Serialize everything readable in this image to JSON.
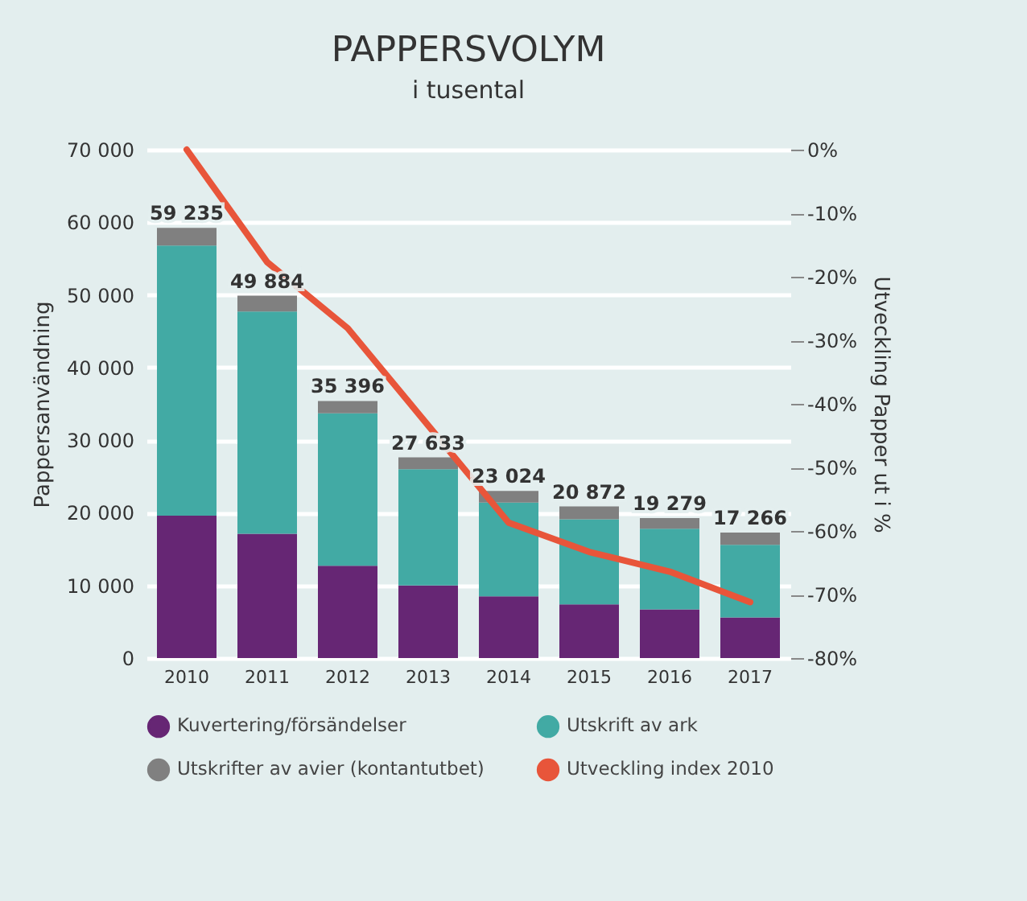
{
  "chart_data": {
    "type": "bar",
    "title": "PAPPERSVOLYM",
    "subtitle": "i tusental",
    "ylabel": "Pappersanvändning",
    "y2label": "Utveckling Papper ut i %",
    "stacked": true,
    "grid": "y",
    "legend": "bottom",
    "marker": "none",
    "categories": [
      "2010",
      "2011",
      "2012",
      "2013",
      "2014",
      "2015",
      "2016",
      "2017"
    ],
    "series": [
      {
        "name": "Kuvertering/försändelser",
        "color": "#662674",
        "values": [
          19600,
          17100,
          12700,
          10000,
          8500,
          7400,
          6700,
          5600
        ]
      },
      {
        "name": "Utskrift av ark",
        "color": "#42aaa4",
        "values": [
          37200,
          30600,
          21000,
          16000,
          12900,
          11700,
          11100,
          10000
        ]
      },
      {
        "name": "Utskrifter av avier (kontantutbet)",
        "color": "#808080",
        "values": [
          2435,
          2184,
          1696,
          1633,
          1624,
          1772,
          1479,
          1666
        ]
      },
      {
        "name": "Utveckling index 2010",
        "color": "#e8553a",
        "type": "line",
        "axis": "y2",
        "values": [
          0,
          -17.7,
          -28.1,
          -43.4,
          -58.7,
          -63.3,
          -66.4,
          -71.2
        ]
      }
    ],
    "totals": [
      "59 235",
      "49 884",
      "35 396",
      "27 633",
      "23 024",
      "20 872",
      "19 279",
      "17 266"
    ],
    "ylim": [
      0,
      70000
    ],
    "yticks": [
      {
        "value": 0,
        "label": "0"
      },
      {
        "value": 10000,
        "label": "10 000"
      },
      {
        "value": 20000,
        "label": "20 000"
      },
      {
        "value": 30000,
        "label": "30 000"
      },
      {
        "value": 40000,
        "label": "40 000"
      },
      {
        "value": 50000,
        "label": "50 000"
      },
      {
        "value": 60000,
        "label": "60 000"
      },
      {
        "value": 70000,
        "label": "70 000"
      }
    ],
    "y2lim": [
      -80,
      0
    ],
    "y2ticks": [
      {
        "value": 0,
        "label": "0%"
      },
      {
        "value": -10,
        "label": "-10%"
      },
      {
        "value": -20,
        "label": "-20%"
      },
      {
        "value": -30,
        "label": "-30%"
      },
      {
        "value": -40,
        "label": "-40%"
      },
      {
        "value": -50,
        "label": "-50%"
      },
      {
        "value": -60,
        "label": "-60%"
      },
      {
        "value": -70,
        "label": "-70%"
      },
      {
        "value": -80,
        "label": "-80%"
      }
    ]
  }
}
